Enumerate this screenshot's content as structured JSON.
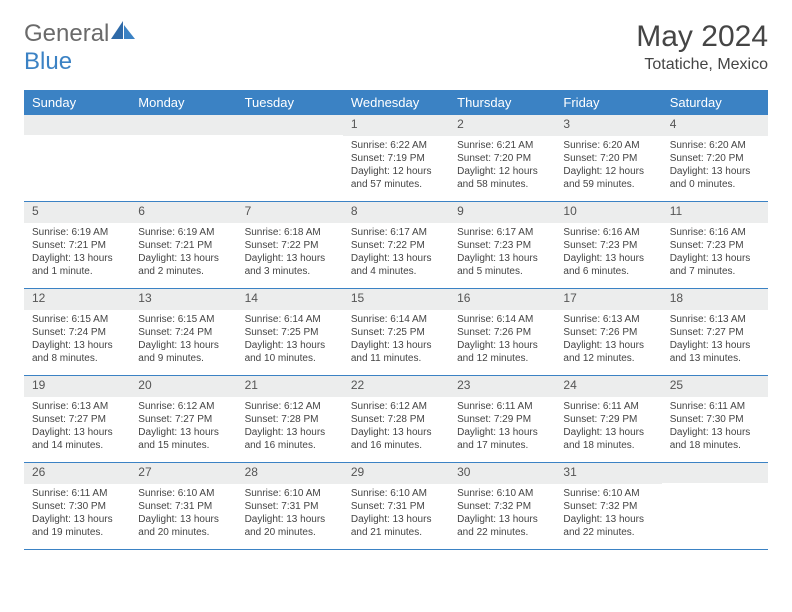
{
  "brand": {
    "part1": "General",
    "part2": "Blue"
  },
  "title": "May 2024",
  "location": "Totatiche, Mexico",
  "dayHeaders": [
    "Sunday",
    "Monday",
    "Tuesday",
    "Wednesday",
    "Thursday",
    "Friday",
    "Saturday"
  ],
  "colors": {
    "accent": "#3b82c4",
    "headerText": "#ffffff",
    "dayNumBg": "#eceded",
    "bodyText": "#444444",
    "titleText": "#454545",
    "logoGray": "#6a6a6a"
  },
  "weeks": [
    [
      {
        "num": "",
        "lines": []
      },
      {
        "num": "",
        "lines": []
      },
      {
        "num": "",
        "lines": []
      },
      {
        "num": "1",
        "lines": [
          "Sunrise: 6:22 AM",
          "Sunset: 7:19 PM",
          "Daylight: 12 hours",
          "and 57 minutes."
        ]
      },
      {
        "num": "2",
        "lines": [
          "Sunrise: 6:21 AM",
          "Sunset: 7:20 PM",
          "Daylight: 12 hours",
          "and 58 minutes."
        ]
      },
      {
        "num": "3",
        "lines": [
          "Sunrise: 6:20 AM",
          "Sunset: 7:20 PM",
          "Daylight: 12 hours",
          "and 59 minutes."
        ]
      },
      {
        "num": "4",
        "lines": [
          "Sunrise: 6:20 AM",
          "Sunset: 7:20 PM",
          "Daylight: 13 hours",
          "and 0 minutes."
        ]
      }
    ],
    [
      {
        "num": "5",
        "lines": [
          "Sunrise: 6:19 AM",
          "Sunset: 7:21 PM",
          "Daylight: 13 hours",
          "and 1 minute."
        ]
      },
      {
        "num": "6",
        "lines": [
          "Sunrise: 6:19 AM",
          "Sunset: 7:21 PM",
          "Daylight: 13 hours",
          "and 2 minutes."
        ]
      },
      {
        "num": "7",
        "lines": [
          "Sunrise: 6:18 AM",
          "Sunset: 7:22 PM",
          "Daylight: 13 hours",
          "and 3 minutes."
        ]
      },
      {
        "num": "8",
        "lines": [
          "Sunrise: 6:17 AM",
          "Sunset: 7:22 PM",
          "Daylight: 13 hours",
          "and 4 minutes."
        ]
      },
      {
        "num": "9",
        "lines": [
          "Sunrise: 6:17 AM",
          "Sunset: 7:23 PM",
          "Daylight: 13 hours",
          "and 5 minutes."
        ]
      },
      {
        "num": "10",
        "lines": [
          "Sunrise: 6:16 AM",
          "Sunset: 7:23 PM",
          "Daylight: 13 hours",
          "and 6 minutes."
        ]
      },
      {
        "num": "11",
        "lines": [
          "Sunrise: 6:16 AM",
          "Sunset: 7:23 PM",
          "Daylight: 13 hours",
          "and 7 minutes."
        ]
      }
    ],
    [
      {
        "num": "12",
        "lines": [
          "Sunrise: 6:15 AM",
          "Sunset: 7:24 PM",
          "Daylight: 13 hours",
          "and 8 minutes."
        ]
      },
      {
        "num": "13",
        "lines": [
          "Sunrise: 6:15 AM",
          "Sunset: 7:24 PM",
          "Daylight: 13 hours",
          "and 9 minutes."
        ]
      },
      {
        "num": "14",
        "lines": [
          "Sunrise: 6:14 AM",
          "Sunset: 7:25 PM",
          "Daylight: 13 hours",
          "and 10 minutes."
        ]
      },
      {
        "num": "15",
        "lines": [
          "Sunrise: 6:14 AM",
          "Sunset: 7:25 PM",
          "Daylight: 13 hours",
          "and 11 minutes."
        ]
      },
      {
        "num": "16",
        "lines": [
          "Sunrise: 6:14 AM",
          "Sunset: 7:26 PM",
          "Daylight: 13 hours",
          "and 12 minutes."
        ]
      },
      {
        "num": "17",
        "lines": [
          "Sunrise: 6:13 AM",
          "Sunset: 7:26 PM",
          "Daylight: 13 hours",
          "and 12 minutes."
        ]
      },
      {
        "num": "18",
        "lines": [
          "Sunrise: 6:13 AM",
          "Sunset: 7:27 PM",
          "Daylight: 13 hours",
          "and 13 minutes."
        ]
      }
    ],
    [
      {
        "num": "19",
        "lines": [
          "Sunrise: 6:13 AM",
          "Sunset: 7:27 PM",
          "Daylight: 13 hours",
          "and 14 minutes."
        ]
      },
      {
        "num": "20",
        "lines": [
          "Sunrise: 6:12 AM",
          "Sunset: 7:27 PM",
          "Daylight: 13 hours",
          "and 15 minutes."
        ]
      },
      {
        "num": "21",
        "lines": [
          "Sunrise: 6:12 AM",
          "Sunset: 7:28 PM",
          "Daylight: 13 hours",
          "and 16 minutes."
        ]
      },
      {
        "num": "22",
        "lines": [
          "Sunrise: 6:12 AM",
          "Sunset: 7:28 PM",
          "Daylight: 13 hours",
          "and 16 minutes."
        ]
      },
      {
        "num": "23",
        "lines": [
          "Sunrise: 6:11 AM",
          "Sunset: 7:29 PM",
          "Daylight: 13 hours",
          "and 17 minutes."
        ]
      },
      {
        "num": "24",
        "lines": [
          "Sunrise: 6:11 AM",
          "Sunset: 7:29 PM",
          "Daylight: 13 hours",
          "and 18 minutes."
        ]
      },
      {
        "num": "25",
        "lines": [
          "Sunrise: 6:11 AM",
          "Sunset: 7:30 PM",
          "Daylight: 13 hours",
          "and 18 minutes."
        ]
      }
    ],
    [
      {
        "num": "26",
        "lines": [
          "Sunrise: 6:11 AM",
          "Sunset: 7:30 PM",
          "Daylight: 13 hours",
          "and 19 minutes."
        ]
      },
      {
        "num": "27",
        "lines": [
          "Sunrise: 6:10 AM",
          "Sunset: 7:31 PM",
          "Daylight: 13 hours",
          "and 20 minutes."
        ]
      },
      {
        "num": "28",
        "lines": [
          "Sunrise: 6:10 AM",
          "Sunset: 7:31 PM",
          "Daylight: 13 hours",
          "and 20 minutes."
        ]
      },
      {
        "num": "29",
        "lines": [
          "Sunrise: 6:10 AM",
          "Sunset: 7:31 PM",
          "Daylight: 13 hours",
          "and 21 minutes."
        ]
      },
      {
        "num": "30",
        "lines": [
          "Sunrise: 6:10 AM",
          "Sunset: 7:32 PM",
          "Daylight: 13 hours",
          "and 22 minutes."
        ]
      },
      {
        "num": "31",
        "lines": [
          "Sunrise: 6:10 AM",
          "Sunset: 7:32 PM",
          "Daylight: 13 hours",
          "and 22 minutes."
        ]
      },
      {
        "num": "",
        "lines": []
      }
    ]
  ]
}
